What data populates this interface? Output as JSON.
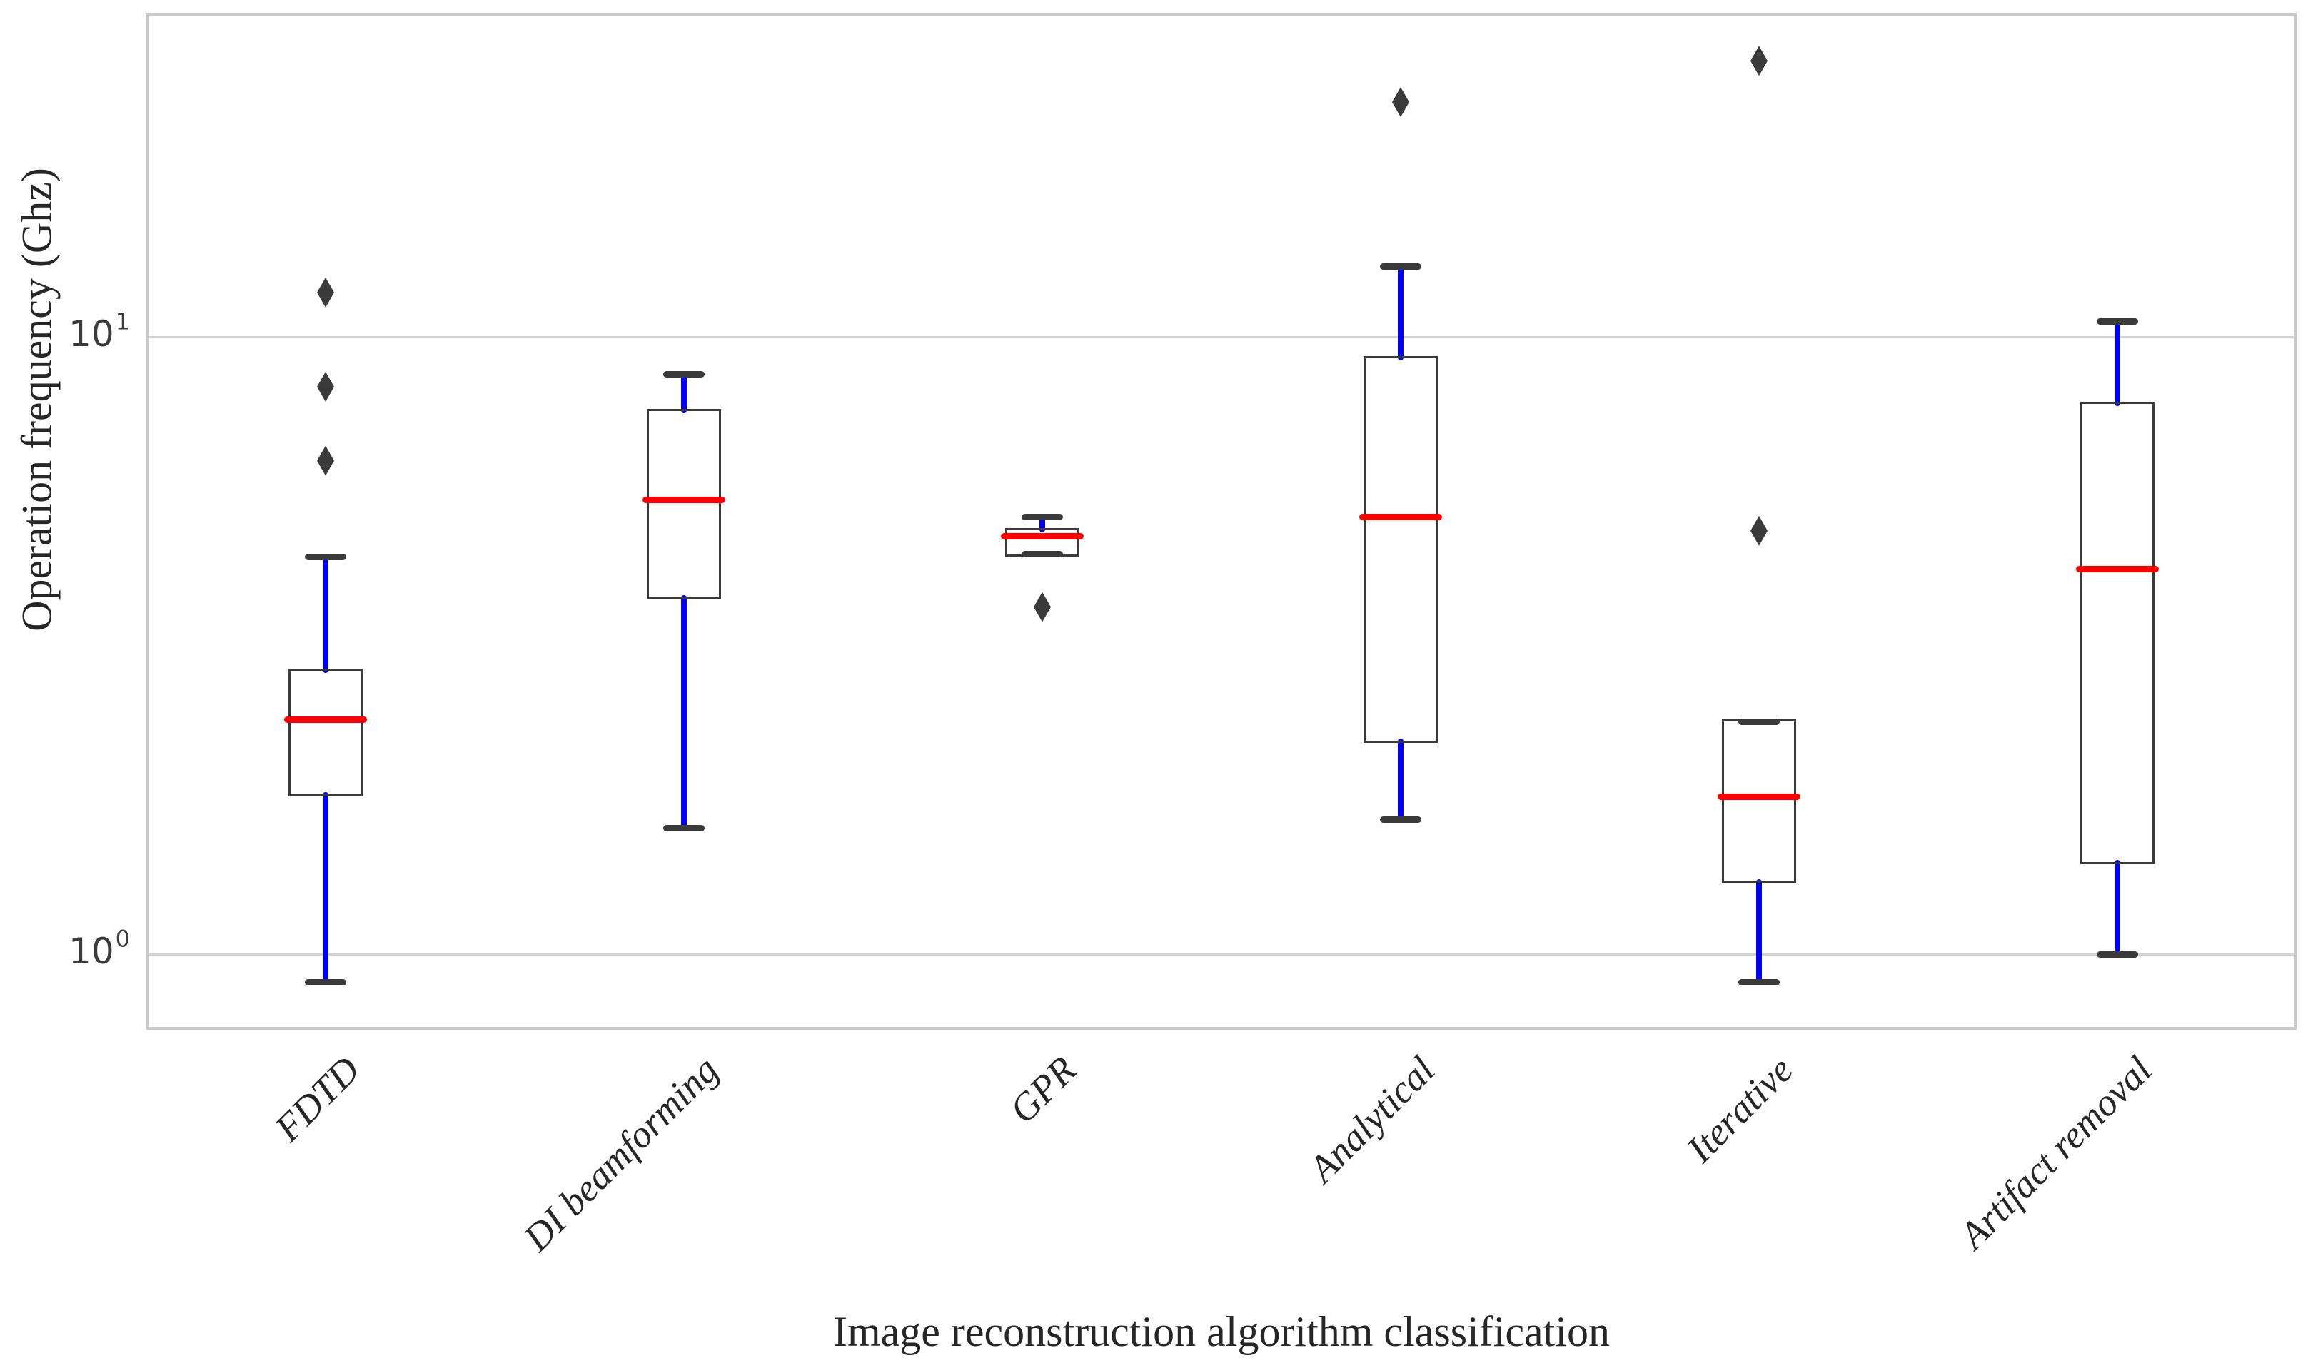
{
  "figure": {
    "xlabel": "Image reconstruction algorithm classification",
    "ylabel": "Operation frequency (Ghz)"
  },
  "chart_data": {
    "type": "box",
    "orientation": "vertical",
    "title": "",
    "xlabel": "Image reconstruction algorithm classification",
    "ylabel": "Operation frequency (Ghz)",
    "y_scale": "log",
    "ylim": [
      0.76,
      33.5
    ],
    "grid": "horizontal",
    "legend": "none",
    "categories": [
      "FDTD",
      "DI beamforming",
      "GPR",
      "Analytical",
      "Iterative",
      "Artifact removal"
    ],
    "yticks": [
      {
        "base": "10",
        "exponent": "0",
        "value": 1
      },
      {
        "base": "10",
        "exponent": "1",
        "value": 10
      }
    ],
    "series": [
      {
        "category": "FDTD",
        "whisker_low": 0.9,
        "q1": 1.8,
        "median": 2.4,
        "q3": 2.9,
        "whisker_high": 4.4,
        "outliers": [
          6.3,
          8.3,
          11.8
        ]
      },
      {
        "category": "DI beamforming",
        "whisker_low": 1.6,
        "q1": 3.75,
        "median": 5.45,
        "q3": 7.65,
        "whisker_high": 8.7,
        "outliers": []
      },
      {
        "category": "GPR",
        "whisker_low": 4.45,
        "q1": 4.4,
        "median": 4.75,
        "q3": 4.9,
        "whisker_high": 5.1,
        "outliers": [
          3.65
        ]
      },
      {
        "category": "Analytical",
        "whisker_low": 1.65,
        "q1": 2.2,
        "median": 5.1,
        "q3": 9.3,
        "whisker_high": 13.0,
        "outliers": [
          24.0
        ]
      },
      {
        "category": "Iterative",
        "whisker_low": 0.9,
        "q1": 1.3,
        "median": 1.8,
        "q3": 2.4,
        "whisker_high": 2.38,
        "outliers": [
          4.85,
          28.0
        ]
      },
      {
        "category": "Artifact removal",
        "whisker_low": 1.0,
        "q1": 1.4,
        "median": 4.2,
        "q3": 7.85,
        "whisker_high": 10.6,
        "outliers": []
      }
    ],
    "flier_marker": "thin-diamond",
    "colors": {
      "whisker": "#0000ee",
      "median": "#ff0000",
      "box_edge": "#3a3a3a",
      "cap": "#3a3a3a",
      "flier": "#3a3a3a",
      "gridline": "#d2d2d2",
      "plot_border": "#c9c9c9",
      "background": "#ffffff"
    }
  }
}
